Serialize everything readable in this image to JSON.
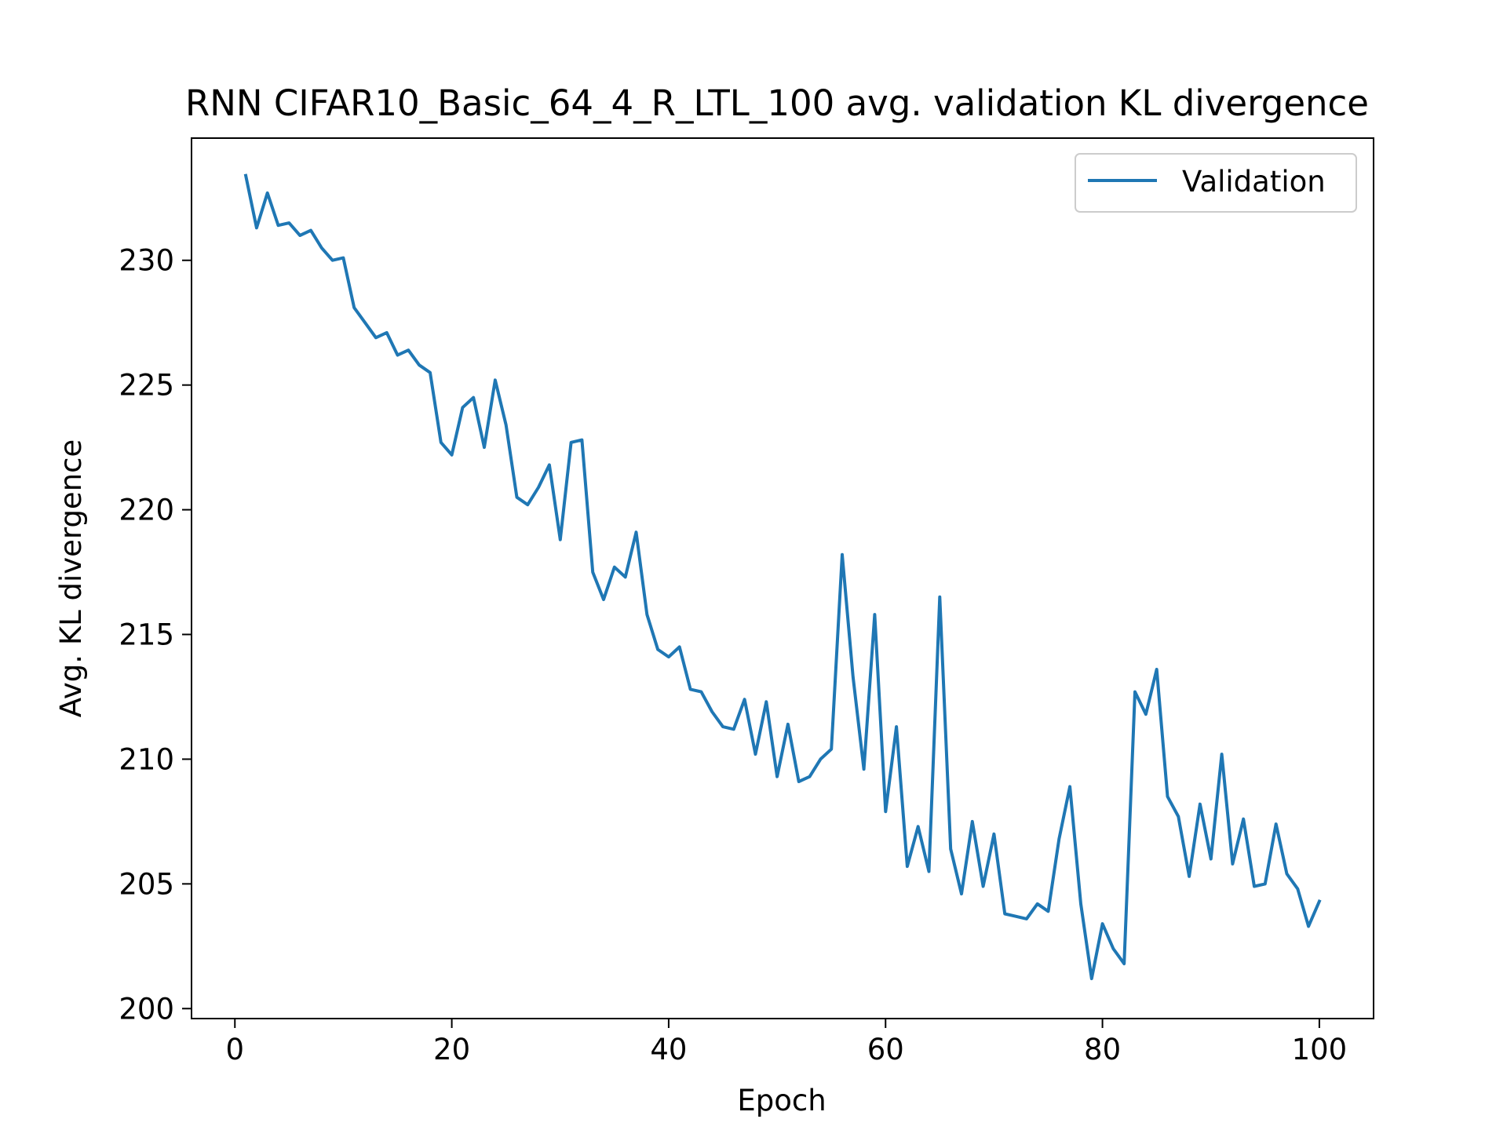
{
  "chart_data": {
    "type": "line",
    "title": "RNN CIFAR10_Basic_64_4_R_LTL_100 avg. validation KL divergence",
    "xlabel": "Epoch",
    "ylabel": "Avg. KL divergence",
    "xlim": [
      -4,
      105
    ],
    "ylim": [
      199.6,
      234.9
    ],
    "xticks": [
      0,
      20,
      40,
      60,
      80,
      100
    ],
    "yticks": [
      200,
      205,
      210,
      215,
      220,
      225,
      230
    ],
    "grid": false,
    "legend": "upper right",
    "series": [
      {
        "name": "Validation",
        "color": "#1f77b4",
        "x": [
          1,
          2,
          3,
          4,
          5,
          6,
          7,
          8,
          9,
          10,
          11,
          12,
          13,
          14,
          15,
          16,
          17,
          18,
          19,
          20,
          21,
          22,
          23,
          24,
          25,
          26,
          27,
          28,
          29,
          30,
          31,
          32,
          33,
          34,
          35,
          36,
          37,
          38,
          39,
          40,
          41,
          42,
          43,
          44,
          45,
          46,
          47,
          48,
          49,
          50,
          51,
          52,
          53,
          54,
          55,
          56,
          57,
          58,
          59,
          60,
          61,
          62,
          63,
          64,
          65,
          66,
          67,
          68,
          69,
          70,
          71,
          72,
          73,
          74,
          75,
          76,
          77,
          78,
          79,
          80,
          81,
          82,
          83,
          84,
          85,
          86,
          87,
          88,
          89,
          90,
          91,
          92,
          93,
          94,
          95,
          96,
          97,
          98,
          99,
          100
        ],
        "y": [
          233.4,
          231.3,
          232.7,
          231.4,
          231.5,
          231.0,
          231.2,
          230.5,
          230.0,
          230.1,
          228.1,
          227.5,
          226.9,
          227.1,
          226.2,
          226.4,
          225.8,
          225.5,
          222.7,
          222.2,
          224.1,
          224.5,
          222.5,
          225.2,
          223.4,
          220.5,
          220.2,
          220.9,
          221.8,
          218.8,
          222.7,
          222.8,
          217.5,
          216.4,
          217.7,
          217.3,
          219.1,
          215.8,
          214.4,
          214.1,
          214.5,
          212.8,
          212.7,
          211.9,
          211.3,
          211.2,
          212.4,
          210.2,
          212.3,
          209.3,
          211.4,
          209.1,
          209.3,
          210.0,
          210.4,
          218.2,
          213.3,
          209.6,
          215.8,
          207.9,
          211.3,
          205.7,
          207.3,
          205.5,
          216.5,
          206.4,
          204.6,
          207.5,
          204.9,
          207.0,
          203.8,
          203.7,
          203.6,
          204.2,
          203.9,
          206.8,
          208.9,
          204.2,
          201.2,
          203.4,
          202.4,
          201.8,
          212.7,
          211.8,
          213.6,
          208.5,
          207.7,
          205.3,
          208.2,
          206.0,
          210.2,
          205.8,
          207.6,
          204.9,
          205.0,
          207.4,
          205.4,
          204.8,
          203.3,
          204.3
        ]
      }
    ]
  }
}
